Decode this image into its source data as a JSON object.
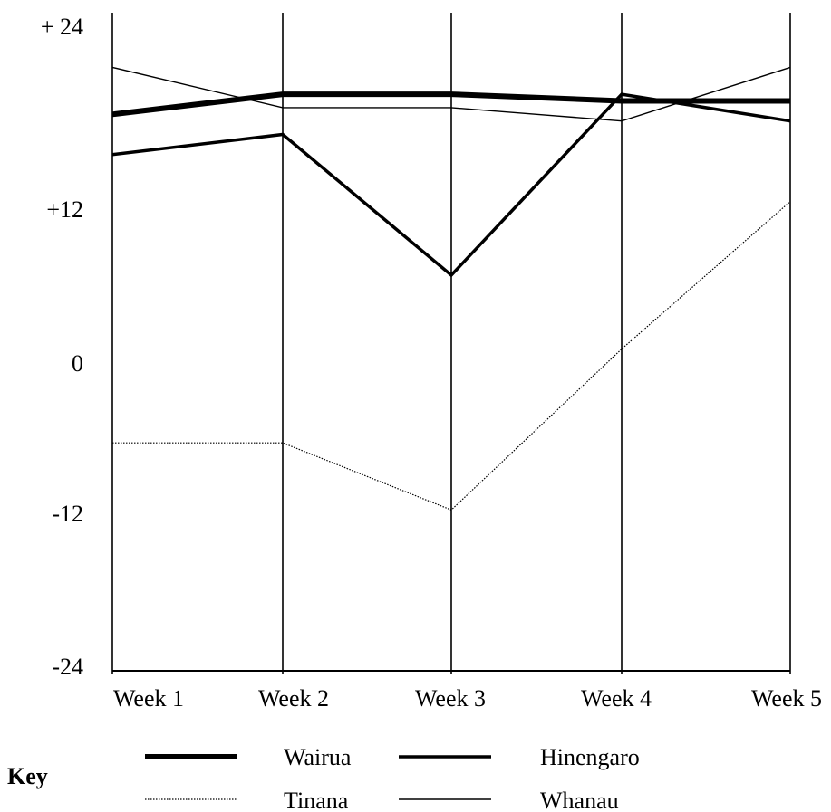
{
  "chart_data": {
    "type": "line",
    "categories": [
      "Week 1",
      "Week 2",
      "Week 3",
      "Week 4",
      "Week 5"
    ],
    "y_tick_labels": [
      "+ 24",
      "+12",
      "0",
      "-12",
      "-24"
    ],
    "y_tick_values": [
      24,
      12,
      0,
      -12,
      -24
    ],
    "ylim": [
      -24,
      24
    ],
    "grid": "vertical lines at each week",
    "series": [
      {
        "name": "Wairua",
        "values": [
          17.5,
          19,
          19,
          18.5,
          18.5
        ],
        "color": "#000000",
        "style": "extra-thick solid"
      },
      {
        "name": "Hinengaro",
        "values": [
          14.5,
          16,
          5.5,
          19,
          17
        ],
        "color": "#000000",
        "style": "thick solid"
      },
      {
        "name": "Tinana",
        "values": [
          -7,
          -7,
          -12,
          0,
          11
        ],
        "color": "#000000",
        "style": "dotted"
      },
      {
        "name": "Whanau",
        "values": [
          21,
          18,
          18,
          17,
          21
        ],
        "color": "#000000",
        "style": "thin solid"
      }
    ],
    "legend": {
      "title": "Key",
      "placement": "bottom"
    }
  }
}
